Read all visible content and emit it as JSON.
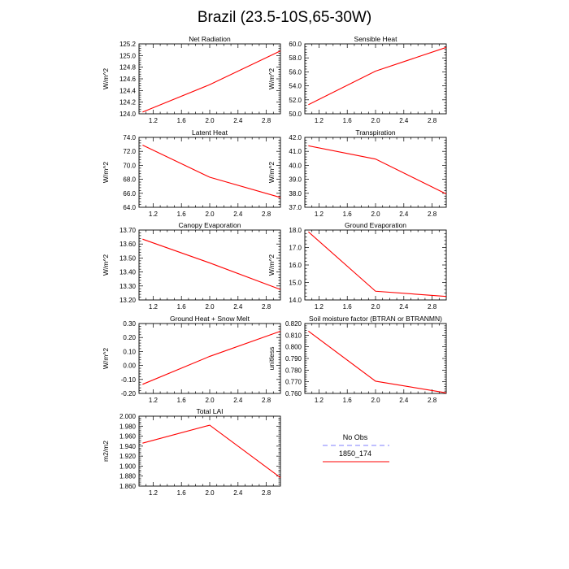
{
  "page": {
    "title": "Brazil (23.5-10S,65-30W)"
  },
  "legend": {
    "entries": [
      {
        "label": "No Obs",
        "color": "#9999ff",
        "dashed": true
      },
      {
        "label": "1850_174",
        "color": "#ff0000",
        "dashed": false
      }
    ]
  },
  "chart_data": [
    {
      "type": "line",
      "title": "Net Radiation",
      "ylabel": "W/m^2",
      "xlim": [
        1.0,
        3.0
      ],
      "xticks": [
        1.2,
        1.6,
        2.0,
        2.4,
        2.8
      ],
      "ylim": [
        124.0,
        125.2
      ],
      "yticks": [
        124.0,
        124.2,
        124.4,
        124.6,
        124.8,
        125.0,
        125.2
      ],
      "ytick_decimals": 1,
      "series": [
        {
          "name": "1850_174",
          "color": "#ff0000",
          "x": [
            1.05,
            2.0,
            3.0
          ],
          "y": [
            124.03,
            124.5,
            125.08
          ]
        }
      ]
    },
    {
      "type": "line",
      "title": "Sensible Heat",
      "ylabel": "W/m^2",
      "xlim": [
        1.0,
        3.0
      ],
      "xticks": [
        1.2,
        1.6,
        2.0,
        2.4,
        2.8
      ],
      "ylim": [
        50.0,
        60.0
      ],
      "yticks": [
        50.0,
        52.0,
        54.0,
        56.0,
        58.0,
        60.0
      ],
      "ytick_decimals": 1,
      "series": [
        {
          "name": "1850_174",
          "color": "#ff0000",
          "x": [
            1.05,
            2.0,
            3.0
          ],
          "y": [
            51.3,
            56.1,
            59.5
          ]
        }
      ]
    },
    {
      "type": "line",
      "title": "Latent Heat",
      "ylabel": "W/m^2",
      "xlim": [
        1.0,
        3.0
      ],
      "xticks": [
        1.2,
        1.6,
        2.0,
        2.4,
        2.8
      ],
      "ylim": [
        64.0,
        74.0
      ],
      "yticks": [
        64.0,
        66.0,
        68.0,
        70.0,
        72.0,
        74.0
      ],
      "ytick_decimals": 1,
      "series": [
        {
          "name": "1850_174",
          "color": "#ff0000",
          "x": [
            1.05,
            2.0,
            3.0
          ],
          "y": [
            72.9,
            68.3,
            65.4
          ]
        }
      ]
    },
    {
      "type": "line",
      "title": "Transpiration",
      "ylabel": "W/m^2",
      "xlim": [
        1.0,
        3.0
      ],
      "xticks": [
        1.2,
        1.6,
        2.0,
        2.4,
        2.8
      ],
      "ylim": [
        37.0,
        42.0
      ],
      "yticks": [
        37.0,
        38.0,
        39.0,
        40.0,
        41.0,
        42.0
      ],
      "ytick_decimals": 1,
      "series": [
        {
          "name": "1850_174",
          "color": "#ff0000",
          "x": [
            1.05,
            2.0,
            3.0
          ],
          "y": [
            41.4,
            40.45,
            37.95
          ]
        }
      ]
    },
    {
      "type": "line",
      "title": "Canopy Evaporation",
      "ylabel": "W/m^2",
      "xlim": [
        1.0,
        3.0
      ],
      "xticks": [
        1.2,
        1.6,
        2.0,
        2.4,
        2.8
      ],
      "ylim": [
        13.2,
        13.7
      ],
      "yticks": [
        13.2,
        13.3,
        13.4,
        13.5,
        13.6,
        13.7
      ],
      "ytick_decimals": 2,
      "series": [
        {
          "name": "1850_174",
          "color": "#ff0000",
          "x": [
            1.05,
            2.0,
            3.0
          ],
          "y": [
            13.635,
            13.465,
            13.275
          ]
        }
      ]
    },
    {
      "type": "line",
      "title": "Ground Evaporation",
      "ylabel": "W/m^2",
      "xlim": [
        1.0,
        3.0
      ],
      "xticks": [
        1.2,
        1.6,
        2.0,
        2.4,
        2.8
      ],
      "ylim": [
        14.0,
        18.0
      ],
      "yticks": [
        14.0,
        15.0,
        16.0,
        17.0,
        18.0
      ],
      "ytick_decimals": 1,
      "series": [
        {
          "name": "1850_174",
          "color": "#ff0000",
          "x": [
            1.05,
            2.0,
            3.0
          ],
          "y": [
            17.9,
            14.5,
            14.2
          ]
        }
      ]
    },
    {
      "type": "line",
      "title": "Ground Heat + Snow Melt",
      "ylabel": "W/m^2",
      "xlim": [
        1.0,
        3.0
      ],
      "xticks": [
        1.2,
        1.6,
        2.0,
        2.4,
        2.8
      ],
      "ylim": [
        -0.2,
        0.3
      ],
      "yticks": [
        -0.2,
        -0.1,
        0.0,
        0.1,
        0.2,
        0.3
      ],
      "ytick_decimals": 2,
      "series": [
        {
          "name": "1850_174",
          "color": "#ff0000",
          "x": [
            1.05,
            2.0,
            3.0
          ],
          "y": [
            -0.135,
            0.065,
            0.245
          ]
        }
      ]
    },
    {
      "type": "line",
      "title": "Soil moisture factor (BTRAN or BTRANMN)",
      "ylabel": "unitless",
      "xlim": [
        1.0,
        3.0
      ],
      "xticks": [
        1.2,
        1.6,
        2.0,
        2.4,
        2.8
      ],
      "ylim": [
        0.76,
        0.82
      ],
      "yticks": [
        0.76,
        0.77,
        0.78,
        0.79,
        0.8,
        0.81,
        0.82
      ],
      "ytick_decimals": 3,
      "series": [
        {
          "name": "1850_174",
          "color": "#ff0000",
          "x": [
            1.05,
            2.0,
            3.0
          ],
          "y": [
            0.8135,
            0.7705,
            0.7605
          ]
        }
      ]
    },
    {
      "type": "line",
      "title": "Total LAI",
      "ylabel": "m2/m2",
      "xlim": [
        1.0,
        3.0
      ],
      "xticks": [
        1.2,
        1.6,
        2.0,
        2.4,
        2.8
      ],
      "ylim": [
        1.86,
        2.0
      ],
      "yticks": [
        1.86,
        1.88,
        1.9,
        1.92,
        1.94,
        1.96,
        1.98,
        2.0
      ],
      "ytick_decimals": 3,
      "series": [
        {
          "name": "1850_174",
          "color": "#ff0000",
          "x": [
            1.05,
            2.0,
            3.0
          ],
          "y": [
            1.946,
            1.982,
            1.877
          ]
        }
      ]
    }
  ]
}
